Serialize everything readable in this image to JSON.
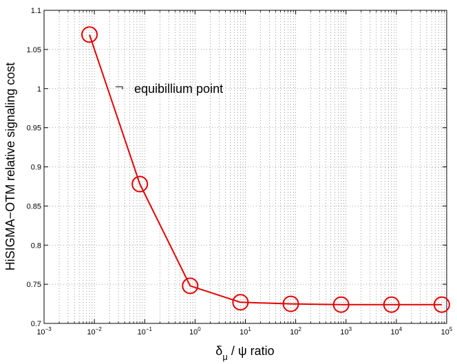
{
  "chart_data": {
    "type": "line",
    "title": "",
    "ylabel": "HiSIGMA−OTM relative signaling cost",
    "xlabel": {
      "delta": "δ",
      "sub": "μ",
      "rest": " / ψ  ratio"
    },
    "x_scale": "log",
    "xlim": [
      0.001,
      100000
    ],
    "ylim": [
      0.7,
      1.1
    ],
    "grid": true,
    "x_ticks": [
      {
        "value": 0.001,
        "base": "10",
        "exp": "−3"
      },
      {
        "value": 0.01,
        "base": "10",
        "exp": "−2"
      },
      {
        "value": 0.1,
        "base": "10",
        "exp": "−1"
      },
      {
        "value": 1,
        "base": "10",
        "exp": "0"
      },
      {
        "value": 10,
        "base": "10",
        "exp": "1"
      },
      {
        "value": 100,
        "base": "10",
        "exp": "2"
      },
      {
        "value": 1000,
        "base": "10",
        "exp": "3"
      },
      {
        "value": 10000,
        "base": "10",
        "exp": "4"
      },
      {
        "value": 100000,
        "base": "10",
        "exp": "5"
      }
    ],
    "y_ticks": [
      {
        "value": 0.7,
        "label": "0.7"
      },
      {
        "value": 0.75,
        "label": "0.75"
      },
      {
        "value": 0.8,
        "label": "0.8"
      },
      {
        "value": 0.85,
        "label": "0.85"
      },
      {
        "value": 0.9,
        "label": "0.9"
      },
      {
        "value": 0.95,
        "label": "0.95"
      },
      {
        "value": 1.0,
        "label": "1"
      },
      {
        "value": 1.05,
        "label": "1.05"
      },
      {
        "value": 1.1,
        "label": "1.1"
      }
    ],
    "series": [
      {
        "color": "#e60000",
        "marker": "circle",
        "x": [
          0.008,
          0.08,
          0.8,
          8,
          80,
          800,
          8000,
          80000
        ],
        "y": [
          1.069,
          0.878,
          0.748,
          0.727,
          0.725,
          0.724,
          0.724,
          0.724
        ]
      }
    ],
    "annotation": {
      "text": "equibillium point",
      "x": 0.015,
      "y": 1.0
    }
  }
}
